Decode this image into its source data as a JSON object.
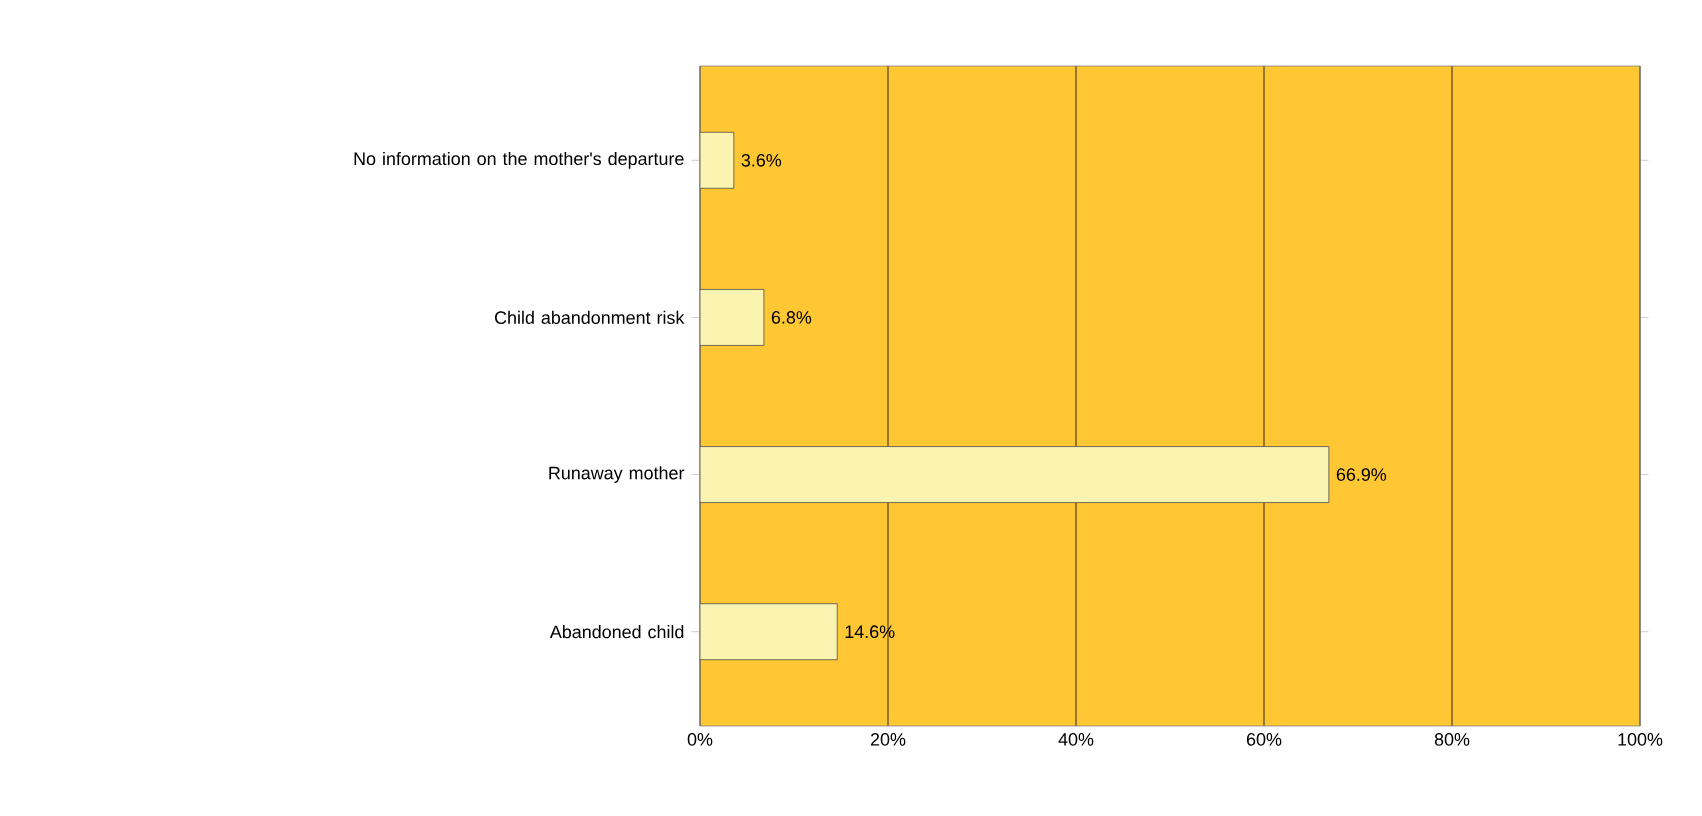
{
  "chart_data": {
    "type": "bar",
    "orientation": "horizontal",
    "categories": [
      "No information on the mother's departure",
      "Child abandonment risk",
      "Runaway mother",
      "Abandoned child"
    ],
    "values": [
      3.6,
      6.8,
      66.9,
      14.6
    ],
    "value_labels": [
      "3.6%",
      "6.8%",
      "66.9%",
      "14.6%"
    ],
    "color": "#fbf3b0",
    "xlim": [
      0,
      100
    ],
    "xticks": [
      {
        "value": 0,
        "label": "0%"
      },
      {
        "value": 20,
        "label": "20%"
      },
      {
        "value": 40,
        "label": "40%"
      },
      {
        "value": 60,
        "label": "60%"
      },
      {
        "value": 80,
        "label": "80%"
      },
      {
        "value": 100,
        "label": "100%"
      }
    ],
    "grid": "x"
  }
}
